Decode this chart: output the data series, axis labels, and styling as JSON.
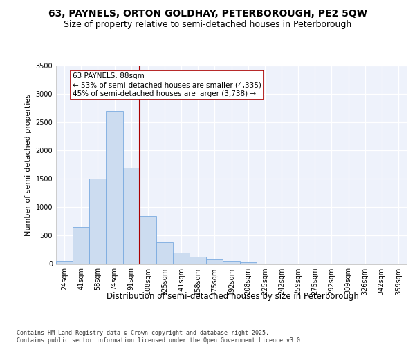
{
  "title1": "63, PAYNELS, ORTON GOLDHAY, PETERBOROUGH, PE2 5QW",
  "title2": "Size of property relative to semi-detached houses in Peterborough",
  "xlabel": "Distribution of semi-detached houses by size in Peterborough",
  "ylabel": "Number of semi-detached properties",
  "categories": [
    "24sqm",
    "41sqm",
    "58sqm",
    "74sqm",
    "91sqm",
    "108sqm",
    "125sqm",
    "141sqm",
    "158sqm",
    "175sqm",
    "192sqm",
    "208sqm",
    "225sqm",
    "242sqm",
    "259sqm",
    "275sqm",
    "292sqm",
    "309sqm",
    "326sqm",
    "342sqm",
    "359sqm"
  ],
  "values": [
    50,
    650,
    1500,
    2700,
    1700,
    850,
    380,
    200,
    130,
    80,
    50,
    25,
    10,
    10,
    5,
    5,
    2,
    2,
    1,
    1,
    1
  ],
  "bar_color": "#ccdcf0",
  "bar_edge_color": "#7aabe0",
  "vline_color": "#aa0000",
  "annotation_text": "63 PAYNELS: 88sqm\n← 53% of semi-detached houses are smaller (4,335)\n45% of semi-detached houses are larger (3,738) →",
  "annotation_box_facecolor": "#ffffff",
  "annotation_box_edgecolor": "#aa0000",
  "ylim": [
    0,
    3500
  ],
  "bg_color": "#eef2fb",
  "grid_color": "#d8dff0",
  "footer_text": "Contains HM Land Registry data © Crown copyright and database right 2025.\nContains public sector information licensed under the Open Government Licence v3.0.",
  "title_fontsize": 10,
  "subtitle_fontsize": 9,
  "ylabel_fontsize": 8,
  "xlabel_fontsize": 8.5,
  "tick_fontsize": 7,
  "annot_fontsize": 7.5,
  "footer_fontsize": 6
}
